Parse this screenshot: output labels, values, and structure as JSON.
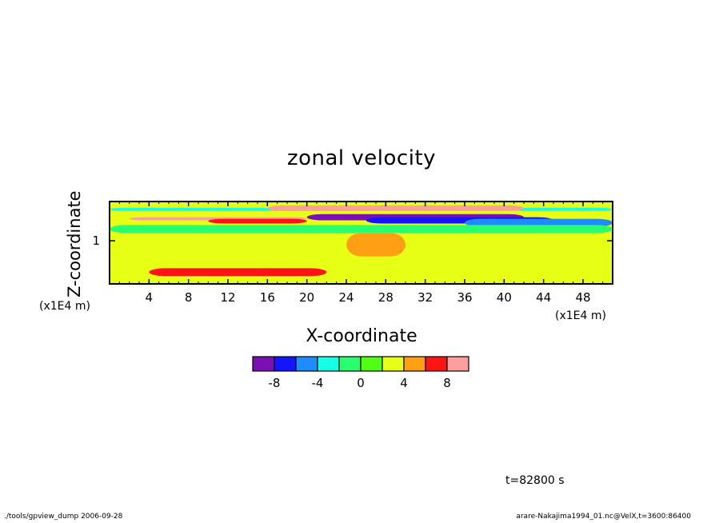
{
  "chart_data": {
    "type": "heatmap",
    "title": "zonal velocity",
    "xlabel": "X-coordinate",
    "ylabel": "Z-coordinate",
    "x_unit": "(x1E4 m)",
    "y_unit": "(x1E4 m)",
    "x_ticks": [
      "4",
      "8",
      "12",
      "16",
      "20",
      "24",
      "28",
      "32",
      "36",
      "40",
      "44",
      "48"
    ],
    "y_ticks": [
      "1"
    ],
    "xlim": [
      0,
      51
    ],
    "ylim": [
      0.45,
      1.5
    ],
    "colorbar": {
      "levels": [
        -10,
        -8,
        -6,
        -4,
        -2,
        0,
        2,
        4,
        6,
        8,
        10
      ],
      "tick_labels": [
        "-8",
        "-4",
        "0",
        "4",
        "8"
      ],
      "colors": [
        "#7a0fb4",
        "#1414ff",
        "#1e8cff",
        "#14ffe6",
        "#28ff6e",
        "#50ff14",
        "#e6ff14",
        "#ffa014",
        "#ff1414",
        "#ff9e9e"
      ]
    },
    "background_value": 2,
    "features": [
      {
        "value": -9,
        "x": [
          20,
          42
        ],
        "z": [
          1.26,
          1.34
        ]
      },
      {
        "value": -8,
        "x": [
          26,
          45
        ],
        "z": [
          1.22,
          1.3
        ]
      },
      {
        "value": -6,
        "x": [
          36,
          51
        ],
        "z": [
          1.18,
          1.28
        ]
      },
      {
        "value": -4,
        "x": [
          0,
          51
        ],
        "z": [
          1.38,
          1.42
        ]
      },
      {
        "value": 8,
        "x": [
          2,
          20
        ],
        "z": [
          1.26,
          1.3
        ]
      },
      {
        "value": 6,
        "x": [
          10,
          20
        ],
        "z": [
          1.22,
          1.28
        ]
      },
      {
        "value": 10,
        "x": [
          16,
          42
        ],
        "z": [
          1.38,
          1.45
        ]
      },
      {
        "value": -2,
        "x": [
          0,
          51
        ],
        "z": [
          1.1,
          1.2
        ]
      },
      {
        "value": 4,
        "x": [
          24,
          30
        ],
        "z": [
          0.8,
          1.1
        ]
      },
      {
        "value": 6,
        "x": [
          4,
          22
        ],
        "z": [
          0.55,
          0.65
        ]
      }
    ]
  },
  "annotation": {
    "time": "t=82800 s",
    "footer_left": "./tools/gpview_dump  2006-09-28",
    "footer_right": "arare-Nakajima1994_01.nc@VelX,t=3600:86400"
  }
}
